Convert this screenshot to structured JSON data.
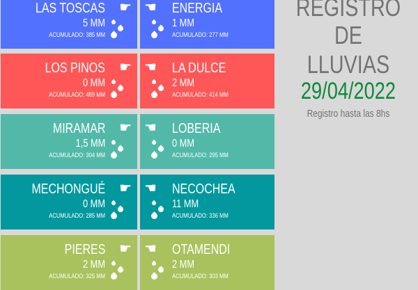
{
  "header": {
    "title_line1": "REGISTRO",
    "title_line2": "DE LLUVIAS",
    "date": "29/04/2022",
    "note": "Registro hasta las 8hs"
  },
  "colors": {
    "title": "#737373",
    "date": "#0b8a3a",
    "rows": [
      "#5271ff",
      "#ff5757",
      "#52b9a9",
      "#03989e",
      "#a9c25d"
    ]
  },
  "icons": {
    "left": "hand-pointing-right-icon",
    "right": "hand-pointing-left-icon",
    "drops": "raindrops-icon"
  },
  "rows": [
    {
      "left": {
        "name": "LAS TOSCAS",
        "value": "5 MM",
        "accum": "ACUMULADO: 385 MM"
      },
      "right": {
        "name": "ENERGIA",
        "value": "1 MM",
        "accum": "ACUMULADO: 277 MM"
      }
    },
    {
      "left": {
        "name": "LOS PINOS",
        "value": "0 MM",
        "accum": "ACUMULADO: 489 MM"
      },
      "right": {
        "name": "LA DULCE",
        "value": "2 MM",
        "accum": "ACUMULADO: 414 MM"
      }
    },
    {
      "left": {
        "name": "MIRAMAR",
        "value": "1,5 MM",
        "accum": "ACUMULADO: 304 MM"
      },
      "right": {
        "name": "LOBERIA",
        "value": "0 MM",
        "accum": "ACUMULADO: 295 MM"
      }
    },
    {
      "left": {
        "name": "MECHONGUÉ",
        "value": "0 MM",
        "accum": "ACUMULADO: 285 MM"
      },
      "right": {
        "name": "NECOCHEA",
        "value": "11 MM",
        "accum": "ACUMULADO: 336 MM"
      }
    },
    {
      "left": {
        "name": "PIERES",
        "value": "2 MM",
        "accum": "ACUMULADO: 325 MM"
      },
      "right": {
        "name": "OTAMENDI",
        "value": "2 MM",
        "accum": "ACUMULADO: 303 MM"
      }
    }
  ]
}
